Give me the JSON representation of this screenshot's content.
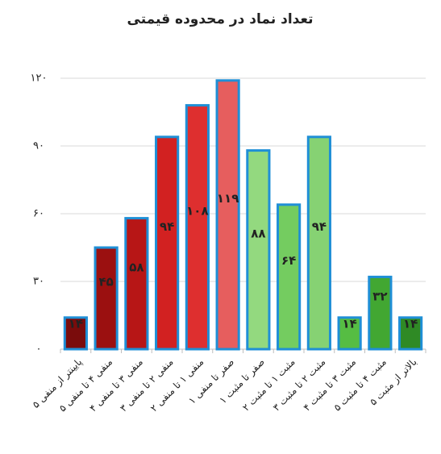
{
  "chart_data": {
    "type": "bar",
    "title": "تعداد نماد در محدوده قیمتی",
    "categories": [
      "پایینتر از منفی ۵",
      "منفی ۴ تا منفی ۵",
      "منفی ۳ تا منفی ۴",
      "منفی ۲ تا منفی ۳",
      "منفی ۱ تا منفی ۲",
      "صفر تا منفی ۱",
      "صفر تا مثبت ۱",
      "مثبت ۱ تا مثبت ۲",
      "مثبت ۲ تا مثبت ۳",
      "مثبت ۳ تا مثبت ۴",
      "مثبت ۴ تا مثبت ۵",
      "بالاتر از مثبت ۵"
    ],
    "values": [
      14,
      45,
      58,
      94,
      108,
      119,
      88,
      64,
      94,
      14,
      32,
      14
    ],
    "value_labels": [
      "۱۴",
      "۴۵",
      "۵۸",
      "۹۴",
      "۱۰۸",
      "۱۱۹",
      "۸۸",
      "۶۴",
      "۹۴",
      "۱۴",
      "۳۲",
      "۱۴"
    ],
    "colors": [
      "#7a0c0c",
      "#9b1010",
      "#b71616",
      "#d22121",
      "#de2f2f",
      "#e65e5e",
      "#93d97f",
      "#74cc60",
      "#86d273",
      "#56bd43",
      "#42a732",
      "#2f8a25"
    ],
    "border_color": "#1f8fd6",
    "ylim": [
      0,
      120
    ],
    "yticks": [
      {
        "value": 0,
        "label": "۰"
      },
      {
        "value": 30,
        "label": "۳۰"
      },
      {
        "value": 60,
        "label": "۶۰"
      },
      {
        "value": 90,
        "label": "۹۰"
      },
      {
        "value": 120,
        "label": "۱۲۰"
      }
    ],
    "grid": true
  }
}
